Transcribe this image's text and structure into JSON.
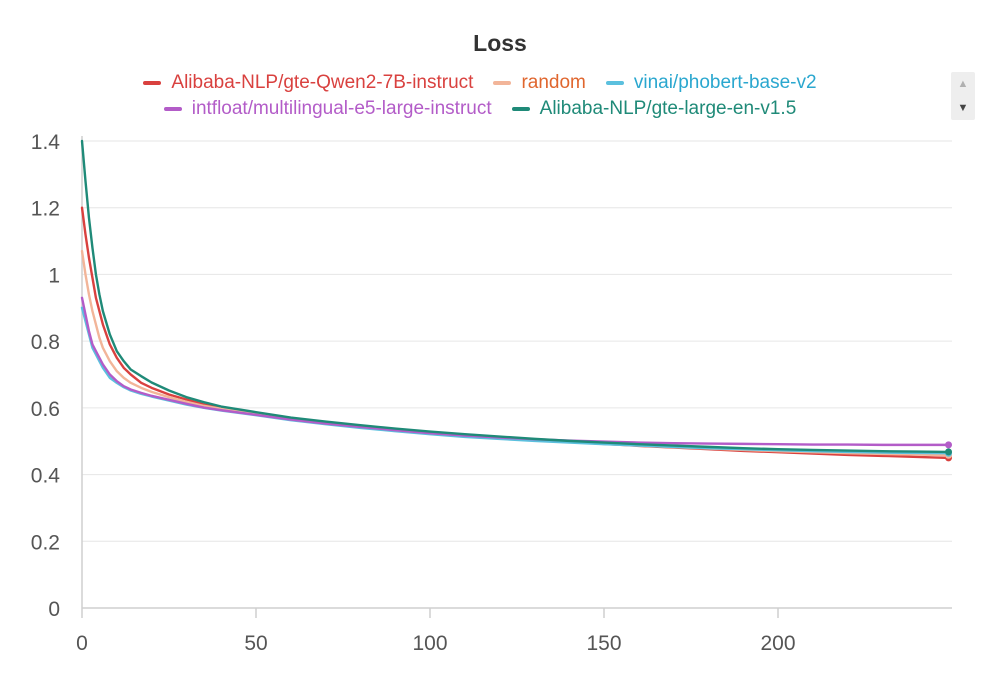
{
  "chart_data": {
    "type": "line",
    "title": "Loss",
    "xlabel": "",
    "ylabel": "",
    "xlim": [
      0,
      250
    ],
    "ylim": [
      0,
      1.4
    ],
    "x_ticks": [
      "0",
      "50",
      "100",
      "150",
      "200"
    ],
    "x_tick_values": [
      0,
      50,
      100,
      150,
      200
    ],
    "y_ticks": [
      "0",
      "0.2",
      "0.4",
      "0.6",
      "0.8",
      "1",
      "1.2",
      "1.4"
    ],
    "y_tick_values": [
      0,
      0.2,
      0.4,
      0.6,
      0.8,
      1.0,
      1.2,
      1.4
    ],
    "grid": true,
    "legend_position": "top-center",
    "x": [
      0,
      1,
      2,
      3,
      4,
      5,
      6,
      8,
      10,
      12,
      14,
      17,
      20,
      25,
      30,
      35,
      40,
      50,
      60,
      70,
      80,
      90,
      100,
      110,
      120,
      130,
      140,
      150,
      160,
      170,
      180,
      190,
      200,
      210,
      220,
      230,
      240,
      249
    ],
    "series": [
      {
        "name": "Alibaba-NLP/gte-Qwen2-7B-instruct",
        "color": "#d9413f",
        "values": [
          1.2,
          1.12,
          1.05,
          0.99,
          0.93,
          0.89,
          0.85,
          0.79,
          0.75,
          0.72,
          0.7,
          0.675,
          0.66,
          0.64,
          0.625,
          0.61,
          0.6,
          0.585,
          0.568,
          0.556,
          0.545,
          0.535,
          0.526,
          0.518,
          0.511,
          0.504,
          0.498,
          0.492,
          0.486,
          0.481,
          0.476,
          0.471,
          0.467,
          0.463,
          0.459,
          0.456,
          0.453,
          0.45
        ]
      },
      {
        "name": "random",
        "color": "#f2b599",
        "values": [
          1.07,
          1.0,
          0.94,
          0.89,
          0.85,
          0.81,
          0.78,
          0.74,
          0.71,
          0.69,
          0.675,
          0.66,
          0.648,
          0.632,
          0.618,
          0.606,
          0.597,
          0.582,
          0.566,
          0.555,
          0.544,
          0.534,
          0.525,
          0.517,
          0.51,
          0.504,
          0.498,
          0.492,
          0.487,
          0.482,
          0.478,
          0.474,
          0.47,
          0.467,
          0.464,
          0.462,
          0.46,
          0.458
        ]
      },
      {
        "name": "vinai/phobert-base-v2",
        "color": "#5bc0de",
        "values": [
          0.9,
          0.86,
          0.82,
          0.78,
          0.76,
          0.74,
          0.72,
          0.69,
          0.675,
          0.662,
          0.652,
          0.642,
          0.634,
          0.622,
          0.61,
          0.6,
          0.592,
          0.578,
          0.563,
          0.551,
          0.54,
          0.53,
          0.521,
          0.513,
          0.507,
          0.501,
          0.496,
          0.491,
          0.487,
          0.483,
          0.479,
          0.476,
          0.473,
          0.47,
          0.468,
          0.466,
          0.465,
          0.464
        ]
      },
      {
        "name": "intfloat/multilingual-e5-large-instruct",
        "color": "#b35cc8",
        "values": [
          0.93,
          0.88,
          0.83,
          0.79,
          0.77,
          0.75,
          0.73,
          0.7,
          0.68,
          0.665,
          0.655,
          0.645,
          0.636,
          0.624,
          0.612,
          0.601,
          0.593,
          0.579,
          0.565,
          0.553,
          0.543,
          0.533,
          0.524,
          0.517,
          0.511,
          0.506,
          0.502,
          0.499,
          0.496,
          0.494,
          0.493,
          0.492,
          0.491,
          0.49,
          0.49,
          0.489,
          0.489,
          0.489
        ]
      },
      {
        "name": "Alibaba-NLP/gte-large-en-v1.5",
        "color": "#1f8a78",
        "values": [
          1.4,
          1.28,
          1.17,
          1.08,
          1.0,
          0.94,
          0.89,
          0.82,
          0.77,
          0.74,
          0.715,
          0.695,
          0.676,
          0.652,
          0.632,
          0.617,
          0.604,
          0.587,
          0.571,
          0.559,
          0.548,
          0.538,
          0.529,
          0.521,
          0.514,
          0.507,
          0.501,
          0.496,
          0.491,
          0.487,
          0.483,
          0.479,
          0.476,
          0.474,
          0.472,
          0.47,
          0.469,
          0.468
        ]
      }
    ]
  },
  "legend": {
    "scroll_up_icon": "▲",
    "scroll_down_icon": "▼",
    "text_colors": [
      "#d9413f",
      "#e0662e",
      "#2aa7cf",
      "#b35cc8",
      "#1f8a78"
    ]
  }
}
